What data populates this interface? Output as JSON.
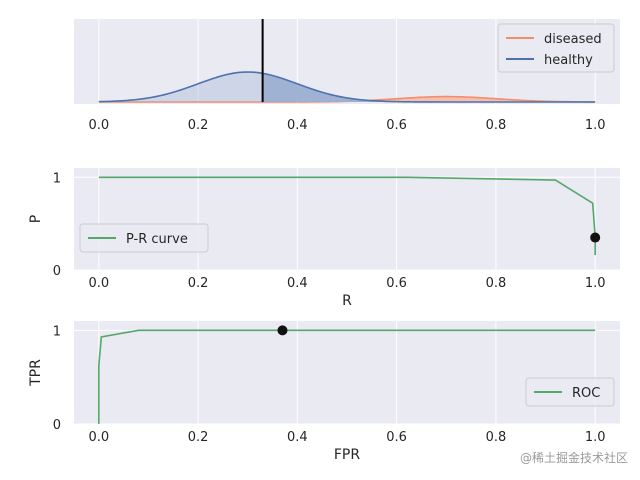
{
  "chart_data": [
    {
      "type": "area",
      "title": "",
      "xlabel": "",
      "ylabel": "",
      "xlim": [
        -0.05,
        1.05
      ],
      "xticks": [
        "0.0",
        "0.2",
        "0.4",
        "0.6",
        "0.8",
        "1.0"
      ],
      "xtick_values": [
        0.0,
        0.2,
        0.4,
        0.6,
        0.8,
        1.0
      ],
      "threshold": 0.33,
      "series": [
        {
          "name": "diseased",
          "mean": 0.7,
          "sd": 0.1,
          "relative_peak": 0.18,
          "color": "#f28e6b",
          "fill": "#f5b8a0"
        },
        {
          "name": "healthy",
          "mean": 0.3,
          "sd": 0.1,
          "relative_peak": 1.0,
          "color": "#4c72b0",
          "fill": "#9aaed0"
        }
      ],
      "legend": [
        "diseased",
        "healthy"
      ],
      "legend_position": "top-right"
    },
    {
      "type": "line",
      "xlabel": "R",
      "ylabel": "P",
      "xlim": [
        -0.05,
        1.05
      ],
      "ylim": [
        0,
        1.1
      ],
      "xticks": [
        "0.0",
        "0.2",
        "0.4",
        "0.6",
        "0.8",
        "1.0"
      ],
      "xtick_values": [
        0.0,
        0.2,
        0.4,
        0.6,
        0.8,
        1.0
      ],
      "yticks": [
        "0",
        "1"
      ],
      "ytick_values": [
        0,
        1
      ],
      "series": [
        {
          "name": "P-R curve",
          "color": "#55a868",
          "x": [
            0.0,
            0.62,
            0.92,
            0.995,
            1.0,
            1.0
          ],
          "y": [
            1.0,
            1.0,
            0.97,
            0.72,
            0.35,
            0.16
          ]
        }
      ],
      "marker": {
        "x": 1.0,
        "y": 0.35
      },
      "legend": [
        "P-R curve"
      ],
      "legend_position": "bottom-left"
    },
    {
      "type": "line",
      "xlabel": "FPR",
      "ylabel": "TPR",
      "xlim": [
        -0.05,
        1.05
      ],
      "ylim": [
        0,
        1.1
      ],
      "xticks": [
        "0.0",
        "0.2",
        "0.4",
        "0.6",
        "0.8",
        "1.0"
      ],
      "xtick_values": [
        0.0,
        0.2,
        0.4,
        0.6,
        0.8,
        1.0
      ],
      "yticks": [
        "0",
        "1"
      ],
      "ytick_values": [
        0,
        1
      ],
      "series": [
        {
          "name": "ROC",
          "color": "#55a868",
          "x": [
            0.0,
            0.0,
            0.005,
            0.08,
            0.37,
            1.0
          ],
          "y": [
            0.0,
            0.62,
            0.93,
            1.0,
            1.0,
            1.0
          ]
        }
      ],
      "marker": {
        "x": 0.37,
        "y": 1.0
      },
      "legend": [
        "ROC"
      ],
      "legend_position": "bottom-right"
    }
  ],
  "watermark": "@稀土掘金技术社区"
}
